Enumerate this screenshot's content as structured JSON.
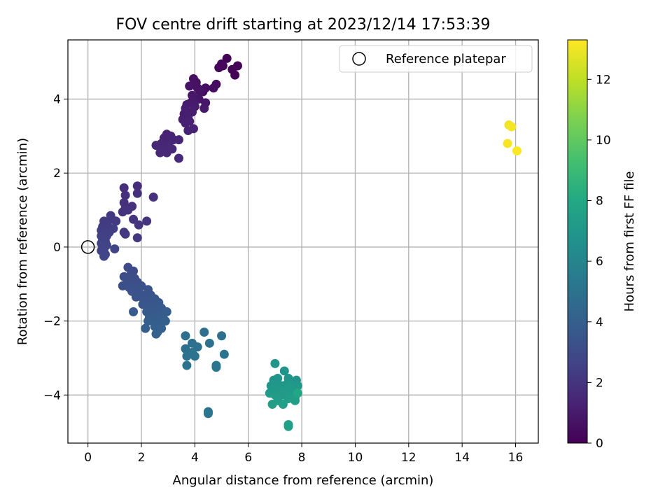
{
  "chart_data": {
    "type": "scatter",
    "title": "FOV centre drift starting at 2023/12/14 17:53:39",
    "xlabel": "Angular distance from reference (arcmin)",
    "ylabel": "Rotation from reference (arcmin)",
    "xlim": [
      -0.75,
      16.85
    ],
    "ylim": [
      -5.3,
      5.6
    ],
    "xticks": [
      0,
      2,
      4,
      6,
      8,
      10,
      12,
      14,
      16
    ],
    "yticks": [
      -4,
      -2,
      0,
      2,
      4
    ],
    "grid": true,
    "legend": {
      "placement": "top-right",
      "entries": [
        "Reference platepar"
      ]
    },
    "reference_point": {
      "x": 0,
      "y": 0,
      "label": "Reference platepar"
    },
    "colorbar": {
      "label": "Hours from first FF file",
      "colormap": "viridis",
      "range": [
        0,
        13.3
      ],
      "ticks": [
        0,
        2,
        4,
        6,
        8,
        10,
        12
      ]
    },
    "points": [
      [
        5.2,
        5.1,
        0.1
      ],
      [
        5.6,
        4.9,
        0.1
      ],
      [
        5.4,
        4.8,
        0.15
      ],
      [
        5.0,
        4.95,
        0.2
      ],
      [
        4.9,
        4.85,
        0.2
      ],
      [
        5.5,
        4.65,
        0.1
      ],
      [
        5.05,
        4.9,
        0.25
      ],
      [
        4.8,
        4.4,
        0.4
      ],
      [
        4.7,
        4.3,
        0.45
      ],
      [
        4.4,
        4.3,
        0.5
      ],
      [
        4.3,
        4.2,
        0.55
      ],
      [
        3.95,
        4.55,
        0.6
      ],
      [
        4.05,
        4.45,
        0.6
      ],
      [
        4.1,
        4.3,
        0.65
      ],
      [
        4.2,
        4.2,
        0.7
      ],
      [
        3.8,
        4.35,
        0.7
      ],
      [
        4.15,
        4.0,
        0.75
      ],
      [
        4.4,
        3.9,
        0.8
      ],
      [
        3.9,
        4.1,
        0.85
      ],
      [
        4.35,
        3.75,
        0.9
      ],
      [
        4.0,
        3.95,
        0.9
      ],
      [
        3.85,
        3.9,
        0.95
      ],
      [
        3.7,
        3.85,
        1.0
      ],
      [
        4.0,
        3.8,
        1.0
      ],
      [
        3.9,
        3.65,
        1.05
      ],
      [
        3.65,
        3.75,
        1.1
      ],
      [
        3.75,
        3.55,
        1.1
      ],
      [
        3.6,
        3.6,
        1.15
      ],
      [
        3.55,
        3.45,
        1.15
      ],
      [
        3.8,
        3.4,
        1.2
      ],
      [
        3.65,
        3.35,
        1.2
      ],
      [
        3.75,
        3.15,
        1.25
      ],
      [
        3.95,
        3.2,
        1.25
      ],
      [
        2.95,
        3.05,
        1.3
      ],
      [
        2.85,
        2.95,
        1.3
      ],
      [
        3.1,
        3.0,
        1.35
      ],
      [
        3.2,
        2.9,
        1.35
      ],
      [
        3.4,
        2.9,
        1.4
      ],
      [
        2.75,
        2.8,
        1.4
      ],
      [
        3.0,
        2.8,
        1.4
      ],
      [
        2.9,
        2.7,
        1.45
      ],
      [
        3.05,
        2.7,
        1.45
      ],
      [
        2.55,
        2.75,
        1.5
      ],
      [
        2.8,
        2.6,
        1.5
      ],
      [
        2.95,
        2.55,
        1.5
      ],
      [
        3.15,
        2.65,
        1.55
      ],
      [
        2.7,
        2.55,
        1.55
      ],
      [
        3.4,
        2.4,
        1.6
      ],
      [
        1.85,
        1.65,
        1.7
      ],
      [
        1.35,
        1.6,
        1.75
      ],
      [
        1.85,
        1.45,
        1.75
      ],
      [
        1.4,
        1.4,
        1.8
      ],
      [
        1.35,
        1.2,
        1.85
      ],
      [
        1.65,
        1.1,
        1.85
      ],
      [
        1.4,
        1.05,
        1.9
      ],
      [
        1.3,
        0.95,
        1.9
      ],
      [
        2.45,
        1.35,
        1.8
      ],
      [
        1.5,
        1.0,
        1.95
      ],
      [
        1.7,
        0.75,
        2.0
      ],
      [
        2.2,
        0.7,
        2.0
      ],
      [
        1.9,
        0.6,
        2.05
      ],
      [
        1.85,
        0.25,
        2.1
      ],
      [
        1.4,
        0.35,
        2.15
      ],
      [
        1.35,
        0.4,
        2.15
      ],
      [
        0.85,
        0.85,
        2.2
      ],
      [
        0.9,
        0.75,
        2.2
      ],
      [
        1.05,
        0.7,
        2.25
      ],
      [
        0.7,
        0.65,
        2.25
      ],
      [
        0.6,
        0.7,
        2.3
      ],
      [
        0.55,
        0.55,
        2.3
      ],
      [
        0.75,
        0.55,
        2.35
      ],
      [
        0.95,
        0.5,
        2.35
      ],
      [
        0.5,
        0.45,
        2.4
      ],
      [
        0.65,
        0.45,
        2.4
      ],
      [
        0.8,
        0.4,
        2.45
      ],
      [
        0.6,
        0.35,
        2.45
      ],
      [
        0.5,
        0.3,
        2.5
      ],
      [
        0.7,
        0.3,
        2.5
      ],
      [
        0.55,
        0.2,
        2.55
      ],
      [
        0.65,
        0.15,
        2.55
      ],
      [
        0.5,
        0.1,
        2.6
      ],
      [
        0.7,
        0.05,
        2.6
      ],
      [
        0.55,
        0.0,
        2.65
      ],
      [
        0.6,
        -0.05,
        2.65
      ],
      [
        1.0,
        -0.05,
        2.7
      ],
      [
        0.5,
        -0.1,
        2.7
      ],
      [
        0.65,
        -0.2,
        2.75
      ],
      [
        0.6,
        -0.25,
        2.75
      ],
      [
        1.5,
        -0.55,
        3.0
      ],
      [
        1.7,
        -0.65,
        3.0
      ],
      [
        1.6,
        -0.75,
        3.05
      ],
      [
        1.35,
        -0.8,
        3.05
      ],
      [
        1.5,
        -0.85,
        3.1
      ],
      [
        1.75,
        -0.85,
        3.1
      ],
      [
        1.85,
        -0.95,
        3.15
      ],
      [
        1.65,
        -0.95,
        3.15
      ],
      [
        1.45,
        -1.0,
        3.2
      ],
      [
        1.3,
        -1.05,
        3.2
      ],
      [
        1.55,
        -1.1,
        3.25
      ],
      [
        1.75,
        -1.1,
        3.25
      ],
      [
        2.0,
        -1.05,
        3.3
      ],
      [
        1.9,
        -1.2,
        3.3
      ],
      [
        1.65,
        -1.2,
        3.35
      ],
      [
        2.25,
        -1.15,
        3.35
      ],
      [
        1.8,
        -1.35,
        3.4
      ],
      [
        2.0,
        -1.35,
        3.4
      ],
      [
        2.15,
        -1.3,
        3.45
      ],
      [
        2.35,
        -1.3,
        3.45
      ],
      [
        2.1,
        -1.45,
        3.5
      ],
      [
        2.3,
        -1.5,
        3.5
      ],
      [
        2.5,
        -1.4,
        3.55
      ],
      [
        2.05,
        -1.55,
        3.55
      ],
      [
        2.2,
        -1.6,
        3.6
      ],
      [
        2.45,
        -1.6,
        3.6
      ],
      [
        2.65,
        -1.5,
        3.65
      ],
      [
        2.35,
        -1.7,
        3.65
      ],
      [
        2.55,
        -1.7,
        3.7
      ],
      [
        2.75,
        -1.65,
        3.7
      ],
      [
        2.2,
        -1.75,
        3.75
      ],
      [
        2.4,
        -1.85,
        3.75
      ],
      [
        2.6,
        -1.85,
        3.8
      ],
      [
        2.85,
        -1.8,
        3.8
      ],
      [
        1.7,
        -1.75,
        3.8
      ],
      [
        2.3,
        -1.9,
        3.85
      ],
      [
        2.5,
        -1.95,
        3.85
      ],
      [
        2.7,
        -1.95,
        3.9
      ],
      [
        2.95,
        -1.75,
        3.9
      ],
      [
        2.25,
        -2.0,
        3.95
      ],
      [
        2.6,
        -2.05,
        3.95
      ],
      [
        2.9,
        -2.0,
        4.0
      ],
      [
        2.15,
        -2.2,
        4.0
      ],
      [
        2.5,
        -2.15,
        4.05
      ],
      [
        2.75,
        -2.2,
        4.05
      ],
      [
        2.6,
        -2.3,
        4.1
      ],
      [
        2.55,
        -2.35,
        4.1
      ],
      [
        3.65,
        -2.4,
        4.8
      ],
      [
        4.35,
        -2.3,
        4.8
      ],
      [
        5.0,
        -2.4,
        4.85
      ],
      [
        3.65,
        -2.75,
        4.9
      ],
      [
        3.9,
        -2.6,
        4.9
      ],
      [
        4.1,
        -2.7,
        4.95
      ],
      [
        4.55,
        -2.6,
        4.95
      ],
      [
        3.9,
        -2.85,
        5.0
      ],
      [
        3.7,
        -2.95,
        5.0
      ],
      [
        4.0,
        -2.95,
        5.05
      ],
      [
        5.1,
        -2.9,
        5.05
      ],
      [
        3.7,
        -3.2,
        5.1
      ],
      [
        4.8,
        -3.25,
        5.15
      ],
      [
        4.8,
        -3.2,
        5.15
      ],
      [
        4.5,
        -4.5,
        5.2
      ],
      [
        4.5,
        -4.45,
        5.2
      ],
      [
        7.0,
        -3.15,
        6.8
      ],
      [
        7.35,
        -3.35,
        6.8
      ],
      [
        6.95,
        -3.6,
        6.85
      ],
      [
        7.1,
        -3.55,
        6.85
      ],
      [
        7.5,
        -3.55,
        6.9
      ],
      [
        7.8,
        -3.6,
        6.9
      ],
      [
        6.85,
        -3.75,
        6.95
      ],
      [
        7.05,
        -3.7,
        6.95
      ],
      [
        7.25,
        -3.75,
        7.0
      ],
      [
        7.45,
        -3.7,
        7.0
      ],
      [
        7.65,
        -3.75,
        7.05
      ],
      [
        7.85,
        -3.75,
        7.05
      ],
      [
        6.9,
        -3.9,
        7.1
      ],
      [
        7.15,
        -3.85,
        7.1
      ],
      [
        7.4,
        -3.9,
        7.15
      ],
      [
        7.6,
        -3.85,
        7.15
      ],
      [
        7.8,
        -3.9,
        7.2
      ],
      [
        6.8,
        -3.95,
        7.2
      ],
      [
        7.0,
        -4.0,
        7.25
      ],
      [
        7.3,
        -4.0,
        7.25
      ],
      [
        7.55,
        -4.0,
        7.3
      ],
      [
        7.75,
        -4.05,
        7.3
      ],
      [
        7.1,
        -4.15,
        7.35
      ],
      [
        7.5,
        -4.1,
        7.35
      ],
      [
        7.75,
        -4.15,
        7.4
      ],
      [
        6.9,
        -4.25,
        7.4
      ],
      [
        7.3,
        -4.25,
        7.45
      ],
      [
        7.5,
        -4.8,
        7.5
      ],
      [
        7.5,
        -4.85,
        7.5
      ],
      [
        7.85,
        -3.95,
        7.9
      ],
      [
        15.75,
        3.3,
        13.0
      ],
      [
        15.85,
        3.25,
        13.1
      ],
      [
        15.7,
        2.8,
        13.2
      ],
      [
        16.05,
        2.6,
        13.3
      ]
    ]
  }
}
